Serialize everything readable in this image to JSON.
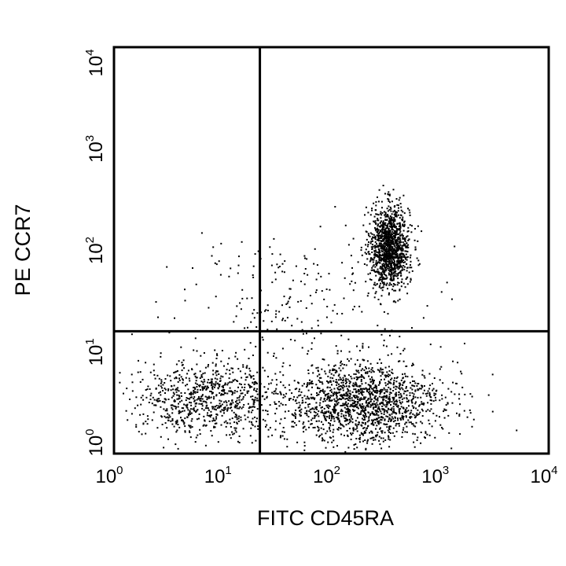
{
  "chart_data": {
    "type": "scatter",
    "title": "",
    "xlabel": "FITC CD45RA",
    "ylabel": "PE CCR7",
    "xscale": "log",
    "yscale": "log",
    "xlim": [
      1,
      10000
    ],
    "ylim": [
      1,
      10000
    ],
    "x_ticks": [
      {
        "base": "10",
        "exp": "0"
      },
      {
        "base": "10",
        "exp": "1"
      },
      {
        "base": "10",
        "exp": "2"
      },
      {
        "base": "10",
        "exp": "3"
      },
      {
        "base": "10",
        "exp": "4"
      }
    ],
    "y_ticks": [
      {
        "base": "10",
        "exp": "0"
      },
      {
        "base": "10",
        "exp": "1"
      },
      {
        "base": "10",
        "exp": "2"
      },
      {
        "base": "10",
        "exp": "3"
      },
      {
        "base": "10",
        "exp": "4"
      }
    ],
    "quadrant_gates": {
      "x": 22,
      "y": 16
    },
    "grid": false,
    "legend": "none",
    "point_color": "#000000",
    "populations": [
      {
        "center": [
          340,
          110
        ],
        "spread_log10": [
          0.09,
          0.2
        ],
        "count": 1300
      },
      {
        "center": [
          190,
          3.2
        ],
        "spread_log10": [
          0.38,
          0.2
        ],
        "count": 1600
      },
      {
        "center": [
          7,
          3.6
        ],
        "spread_log10": [
          0.32,
          0.18
        ],
        "count": 800
      },
      {
        "center": [
          60,
          35
        ],
        "spread_log10": [
          0.6,
          0.3
        ],
        "count": 220
      }
    ]
  }
}
